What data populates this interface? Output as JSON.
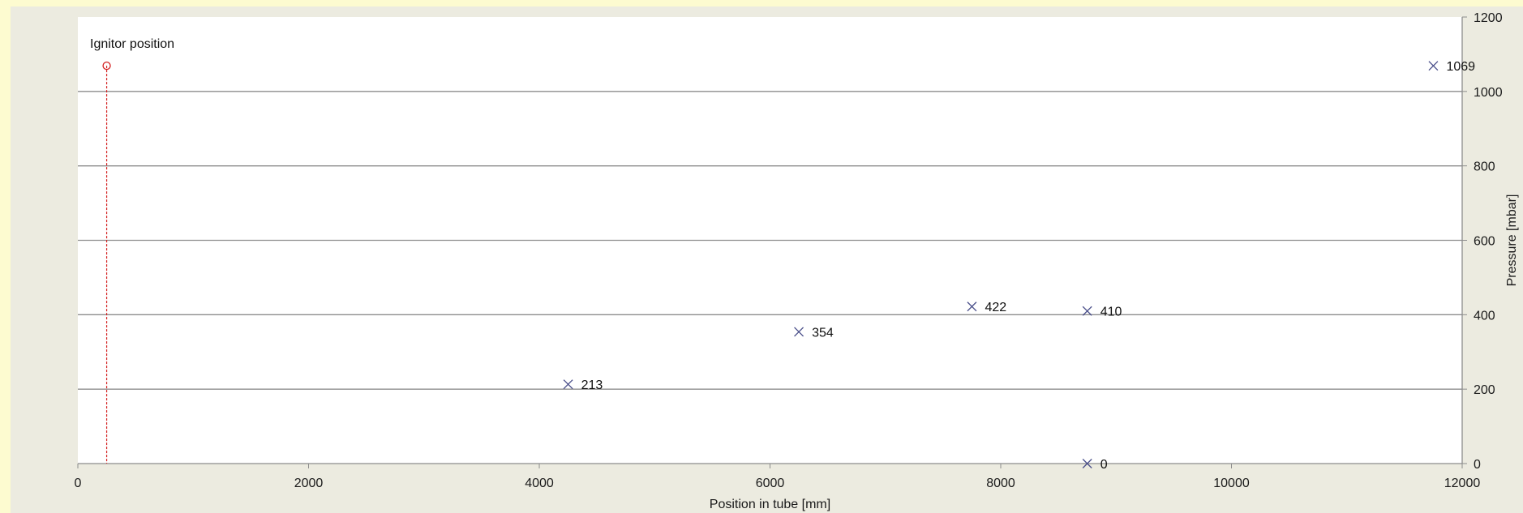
{
  "chart_data": {
    "type": "scatter",
    "xlabel": "Position in tube [mm]",
    "ylabel": "Pressure [mbar]",
    "xlim": [
      0,
      12000
    ],
    "ylim": [
      0,
      1200
    ],
    "x_ticks": [
      0,
      2000,
      4000,
      6000,
      8000,
      10000,
      12000
    ],
    "y_ticks": [
      0,
      200,
      400,
      600,
      800,
      1000,
      1200
    ],
    "y_axis_side": "right",
    "grid": "horizontal",
    "colors": {
      "marker": "#4a4f8a",
      "ignitor": "#d42020",
      "gridline": "#8c8c8c",
      "plot_bg": "#ffffff"
    },
    "points": [
      {
        "x": 4250,
        "y": 213,
        "label": "213"
      },
      {
        "x": 6250,
        "y": 354,
        "label": "354"
      },
      {
        "x": 7750,
        "y": 422,
        "label": "422"
      },
      {
        "x": 8750,
        "y": 410,
        "label": "410"
      },
      {
        "x": 8750,
        "y": 0,
        "label": "0"
      },
      {
        "x": 11750,
        "y": 1069,
        "label": "1069"
      }
    ],
    "annotation": {
      "text": "Ignitor position",
      "x": 250,
      "y": 1069
    }
  }
}
